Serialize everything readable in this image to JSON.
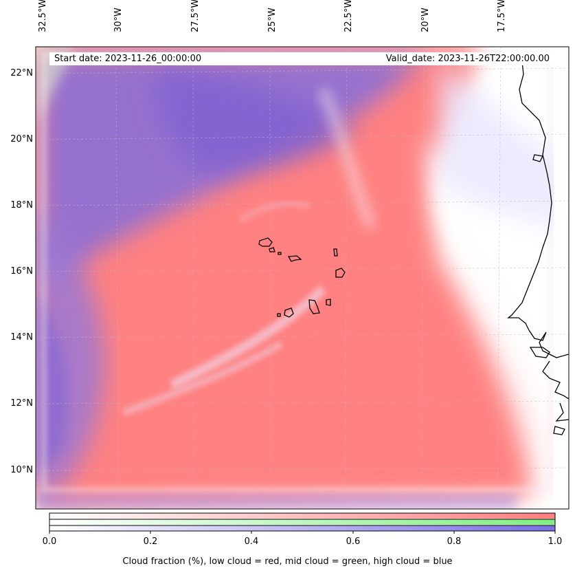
{
  "map": {
    "start_date": "Start date: 2023-11-26_00:00:00",
    "valid_date": "Valid_date: 2023-11-26T22:00:00.00",
    "lon_labels": [
      "32.5°W",
      "30°W",
      "27.5°W",
      "25°W",
      "22.5°W",
      "20°W",
      "17.5°W"
    ],
    "lat_labels": [
      "22°N",
      "20°N",
      "18°N",
      "16°N",
      "14°N",
      "12°N",
      "10°N"
    ],
    "colors": {
      "low_cloud": "#ff7f7f",
      "mid_cloud": "#80ee80",
      "high_cloud": "#7b6ee6",
      "coastline": "#000000",
      "gridline": "#bbbbbb"
    }
  },
  "colorbar": {
    "ticks": [
      "0.0",
      "0.2",
      "0.4",
      "0.6",
      "0.8",
      "1.0"
    ],
    "label": "Cloud fraction (%), low cloud = red, mid cloud = green, high cloud = blue"
  }
}
